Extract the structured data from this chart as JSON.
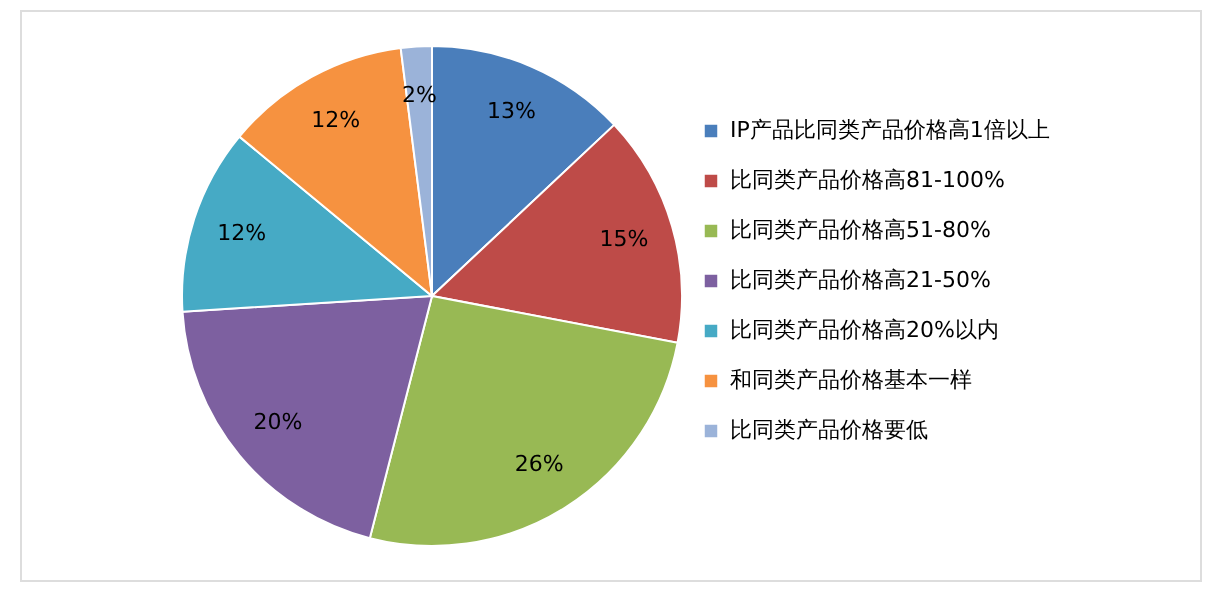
{
  "chart_data": {
    "type": "pie",
    "categories": [
      "IP产品比同类产品价格高1倍以上",
      "比同类产品价格高81-100%",
      "比同类产品价格高51-80%",
      "比同类产品价格高21-50%",
      "比同类产品价格高20%以内",
      "和同类产品价格基本一样",
      "比同类产品价格要低"
    ],
    "values": [
      13,
      15,
      26,
      20,
      12,
      12,
      2
    ],
    "colors": [
      "#4a7ebb",
      "#be4b48",
      "#98b954",
      "#7d60a0",
      "#46aac5",
      "#f69240",
      "#9bb3d9"
    ],
    "value_labels": [
      "13%",
      "15%",
      "26%",
      "20%",
      "12%",
      "12%",
      "2%"
    ],
    "legend": "right"
  }
}
